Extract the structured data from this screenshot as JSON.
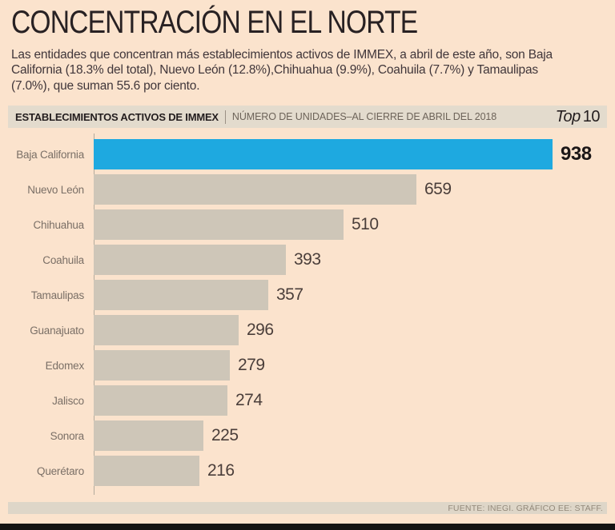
{
  "title": "CONCENTRACIÓN EN EL NORTE",
  "subtitle": "Las entidades que concentran más establecimientos activos de IMMEX, a abril de este año, son Baja\nCalifornia (18.3% del total), Nuevo León (12.8%),Chihuahua (9.9%), Coahuila (7.7%) y Tamaulipas\n(7.0%), que suman  55.6 por ciento.",
  "header_bar": {
    "kicker": "ESTABLECIMIENTOS ACTIVOS DE IMMEX",
    "sub_kicker": "NÚMERO DE UNIDADES–AL CIERRE DE ABRIL DEL 2018",
    "top_word": "Top",
    "top_number": "10"
  },
  "chart_data": {
    "type": "bar",
    "orientation": "horizontal",
    "title": "ESTABLECIMIENTOS ACTIVOS DE IMMEX — NÚMERO DE UNIDADES AL CIERRE DE ABRIL DEL 2018",
    "categories": [
      "Baja California",
      "Nuevo León",
      "Chihuahua",
      "Coahuila",
      "Tamaulipas",
      "Guanajuato",
      "Edomex",
      "Jalisco",
      "Sonora",
      "Querétaro"
    ],
    "values": [
      938,
      659,
      510,
      393,
      357,
      296,
      279,
      274,
      225,
      216
    ],
    "xlim": [
      0,
      938
    ],
    "highlight_index": 0,
    "highlight_color": "#1ea9e0",
    "bar_color": "#cec6b8",
    "value_labels": true,
    "grid": false,
    "legend": "none"
  },
  "footer": {
    "source": "FUENTE: INEGI.  GRÁFICO EE: STAFF."
  },
  "colors": {
    "background": "#fbe3cd",
    "strip_background": "#e3dbcd",
    "bar_gray": "#cec6b8",
    "bar_blue": "#1ea9e0",
    "title_text": "#282123",
    "body_text": "#40363a",
    "label_text": "#7a6f66",
    "value_text": "#4a3e3a",
    "bottom_bar": "#131313"
  }
}
